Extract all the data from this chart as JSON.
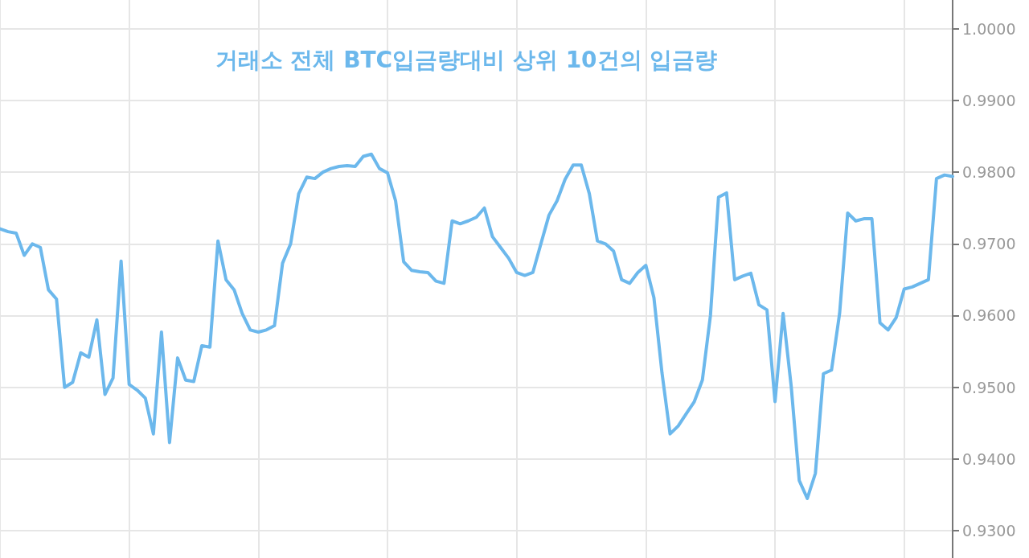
{
  "chart_data": {
    "type": "line",
    "title": "거래소 전체 BTC입금량대비 상위 10건의 입금량",
    "categories": [
      null,
      null,
      null,
      null,
      null,
      null,
      null,
      null,
      null,
      null,
      null,
      null,
      null,
      null,
      null,
      null,
      null,
      null,
      null,
      null,
      null,
      null,
      null,
      null,
      null,
      null,
      null,
      null,
      null,
      null,
      null,
      null,
      null,
      null,
      null,
      null,
      null,
      null,
      null,
      null,
      null,
      null,
      null,
      null,
      null,
      null,
      null,
      null,
      null,
      null,
      null,
      null,
      null,
      null,
      null,
      null,
      null,
      null,
      null,
      null,
      null,
      null,
      null,
      null,
      null,
      null,
      null,
      null,
      null,
      null,
      null,
      null,
      null,
      null,
      null,
      null,
      null,
      null,
      null,
      null,
      null,
      null,
      null,
      null,
      null,
      null,
      null,
      null,
      null,
      null,
      null,
      null,
      null,
      null,
      null,
      null,
      null,
      null,
      null,
      null,
      null,
      null,
      null,
      null,
      null,
      null,
      null,
      null,
      null,
      null,
      null,
      null,
      null,
      null,
      null,
      null,
      null,
      null,
      null
    ],
    "series": [
      {
        "color": "#6cb8ec",
        "values": [
          0.9721,
          0.9717,
          0.9715,
          0.9684,
          0.97,
          0.9695,
          0.9636,
          0.9623,
          0.95,
          0.9507,
          0.9548,
          0.9542,
          0.9594,
          0.949,
          0.9513,
          0.9676,
          0.9504,
          0.9496,
          0.9485,
          0.9435,
          0.9577,
          0.9423,
          0.9541,
          0.951,
          0.9508,
          0.9558,
          0.9556,
          0.9704,
          0.965,
          0.9636,
          0.9603,
          0.958,
          0.9577,
          0.958,
          0.9586,
          0.9673,
          0.97,
          0.977,
          0.9793,
          0.9791,
          0.98,
          0.9805,
          0.9808,
          0.9809,
          0.9808,
          0.9822,
          0.9825,
          0.9805,
          0.9799,
          0.976,
          0.9675,
          0.9663,
          0.9661,
          0.966,
          0.9648,
          0.9645,
          0.9732,
          0.9728,
          0.9732,
          0.9737,
          0.975,
          0.971,
          0.9695,
          0.968,
          0.966,
          0.9656,
          0.966,
          0.97,
          0.974,
          0.976,
          0.979,
          0.981,
          0.981,
          0.977,
          0.9704,
          0.97,
          0.969,
          0.965,
          0.9645,
          0.966,
          0.967,
          0.9625,
          0.952,
          0.9435,
          0.9446,
          0.9463,
          0.948,
          0.951,
          0.96,
          0.9765,
          0.9771,
          0.965,
          0.9655,
          0.9659,
          0.9615,
          0.9608,
          0.948,
          0.9603,
          0.9502,
          0.937,
          0.9345,
          0.938,
          0.9519,
          0.9524,
          0.9603,
          0.9743,
          0.9732,
          0.9735,
          0.9735,
          0.959,
          0.958,
          0.9597,
          0.9637,
          0.964,
          0.9645,
          0.965,
          0.9791,
          0.9796,
          0.9794
        ]
      }
    ],
    "ylim": [
      0.9262,
      1.004
    ],
    "yticks": [
      {
        "value": 0.93,
        "label": "0.9300"
      },
      {
        "value": 0.94,
        "label": "0.9400"
      },
      {
        "value": 0.95,
        "label": "0.9500"
      },
      {
        "value": 0.96,
        "label": "0.9600"
      },
      {
        "value": 0.97,
        "label": "0.9700"
      },
      {
        "value": 0.98,
        "label": "0.9800"
      },
      {
        "value": 0.99,
        "label": "0.9900"
      },
      {
        "value": 1.0,
        "label": "1.0000"
      }
    ],
    "grid": true,
    "marker": "none",
    "line_style": "solid",
    "tick_labels": "y"
  }
}
